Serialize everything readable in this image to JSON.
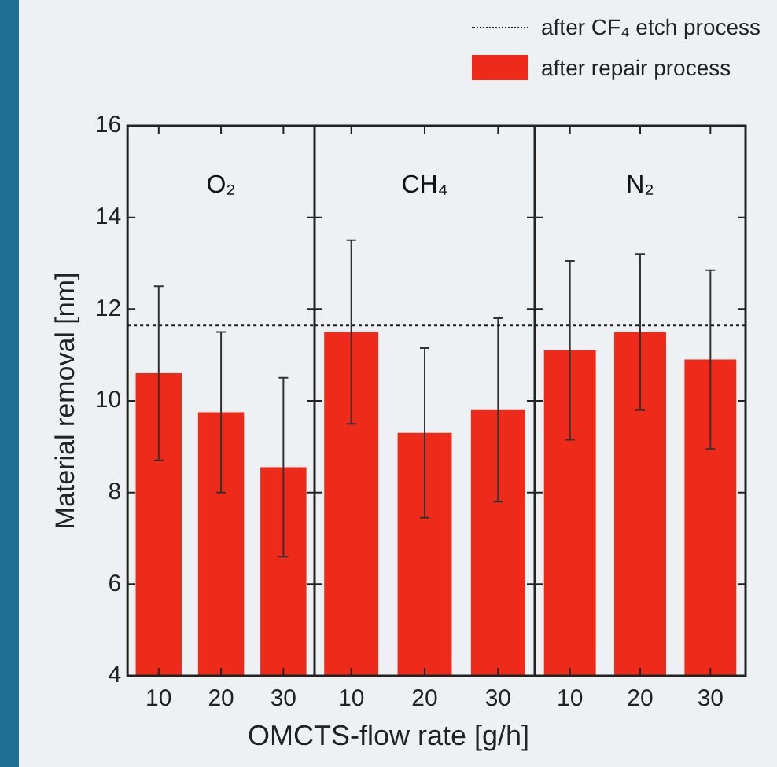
{
  "chart_data": [
    {
      "type": "bar",
      "title": "O₂",
      "ylabel": "Material removal [nm]",
      "categories": [
        "10",
        "20",
        "30"
      ],
      "series": [
        {
          "name": "after repair process",
          "color": "#ee2a1b",
          "values": [
            10.6,
            9.75,
            8.55
          ],
          "errors": [
            1.9,
            1.75,
            1.95
          ]
        }
      ],
      "ylim": [
        4,
        16
      ],
      "yticks": [
        4,
        6,
        8,
        10,
        12,
        14,
        16
      ],
      "ref_lines": [
        {
          "axis": "y",
          "value": 11.65,
          "label": "after CF₄ etch process",
          "line_style": "dotted",
          "color": "#222222"
        }
      ],
      "legend": "top right",
      "grid": false
    },
    {
      "type": "bar",
      "title": "CH₄",
      "xlabel": "OMCTS-flow rate [g/h]",
      "categories": [
        "10",
        "20",
        "30"
      ],
      "series": [
        {
          "color": "#ee2a1b",
          "values": [
            11.5,
            9.3,
            9.8
          ],
          "errors": [
            2.0,
            1.85,
            2.0
          ]
        }
      ],
      "ylim": [
        4,
        16
      ],
      "yticks": [
        4,
        6,
        8,
        10,
        12,
        14,
        16
      ],
      "tick_labels": "x",
      "ref_lines": [
        {
          "axis": "y",
          "value": 11.65,
          "line_style": "dotted",
          "color": "#222222"
        }
      ],
      "grid": false
    },
    {
      "type": "bar",
      "title": "N₂",
      "categories": [
        "10",
        "20",
        "30"
      ],
      "series": [
        {
          "color": "#ee2a1b",
          "values": [
            11.1,
            11.5,
            10.9
          ],
          "errors": [
            1.95,
            1.7,
            1.95
          ]
        }
      ],
      "ylim": [
        4,
        16
      ],
      "yticks": [
        4,
        6,
        8,
        10,
        12,
        14,
        16
      ],
      "tick_labels": "x",
      "ref_lines": [
        {
          "axis": "y",
          "value": 11.65,
          "line_style": "dotted",
          "color": "#222222"
        }
      ],
      "grid": false
    }
  ]
}
